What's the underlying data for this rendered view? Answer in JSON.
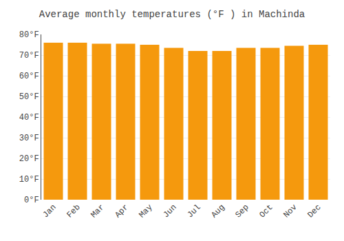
{
  "chart_data": {
    "type": "bar",
    "title": "Average monthly temperatures (°F ) in Machinda",
    "categories": [
      "Jan",
      "Feb",
      "Mar",
      "Apr",
      "May",
      "Jun",
      "Jul",
      "Aug",
      "Sep",
      "Oct",
      "Nov",
      "Dec"
    ],
    "values": [
      76,
      76,
      75.5,
      75.5,
      75,
      73.5,
      72,
      72,
      73.5,
      73.5,
      74.5,
      75
    ],
    "color": "#F5990D",
    "ylim": [
      0,
      80
    ],
    "yticks": [
      {
        "value": 0,
        "label": "0°F"
      },
      {
        "value": 10,
        "label": "10°F"
      },
      {
        "value": 20,
        "label": "20°F"
      },
      {
        "value": 30,
        "label": "30°F"
      },
      {
        "value": 40,
        "label": "40°F"
      },
      {
        "value": 50,
        "label": "50°F"
      },
      {
        "value": 60,
        "label": "60°F"
      },
      {
        "value": 70,
        "label": "70°F"
      },
      {
        "value": 80,
        "label": "80°F"
      }
    ],
    "grid": true
  }
}
